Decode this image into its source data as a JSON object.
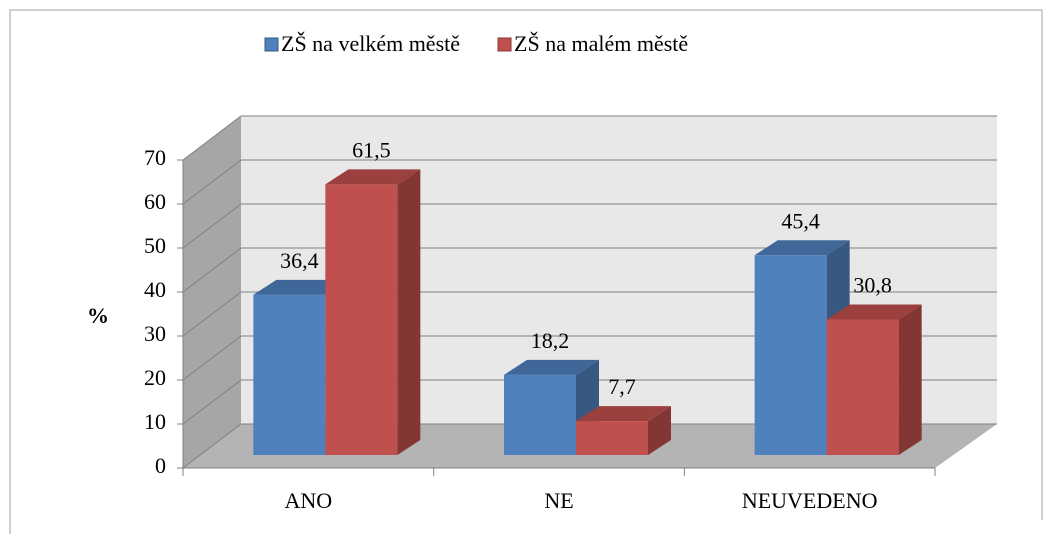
{
  "chart_data": {
    "type": "bar3d",
    "categories": [
      "ANO",
      "NE",
      "NEUVEDENO"
    ],
    "series": [
      {
        "name": "ZŠ na velkém městě",
        "color": "#4f81bd",
        "values": [
          36.4,
          18.2,
          45.4
        ],
        "value_labels": [
          "36,4",
          "18,2",
          "45,4"
        ]
      },
      {
        "name": "ZŠ na malém městě",
        "color": "#c0504d",
        "values": [
          61.5,
          7.7,
          30.8
        ],
        "value_labels": [
          "61,5",
          "7,7",
          "30,8"
        ]
      }
    ],
    "ylabel": "%",
    "ylim": [
      0,
      70
    ],
    "yticks": [
      0,
      10,
      20,
      30,
      40,
      50,
      60,
      70
    ],
    "grid": true,
    "legend": "top"
  }
}
